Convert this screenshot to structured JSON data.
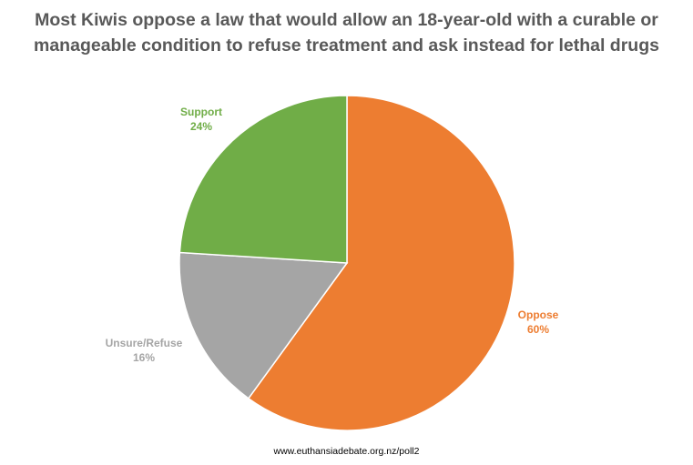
{
  "chart_data": {
    "type": "pie",
    "title_lines": [
      "Most Kiwis oppose a law that would allow an 18-year-old with a curable or",
      "manageable condition to refuse treatment and ask instead for lethal drugs"
    ],
    "slices": [
      {
        "label": "Oppose",
        "value": 60,
        "value_label": "60%",
        "color": "#ED7D31"
      },
      {
        "label": "Unsure/Refuse",
        "value": 16,
        "value_label": "16%",
        "color": "#A5A5A5"
      },
      {
        "label": "Support",
        "value": 24,
        "value_label": "24%",
        "color": "#70AD47"
      }
    ],
    "start_angle": "12 o'clock",
    "direction": "clockwise",
    "legend": "none"
  },
  "footer": {
    "source": "www.euthansiadebate.org.nz/poll2"
  }
}
